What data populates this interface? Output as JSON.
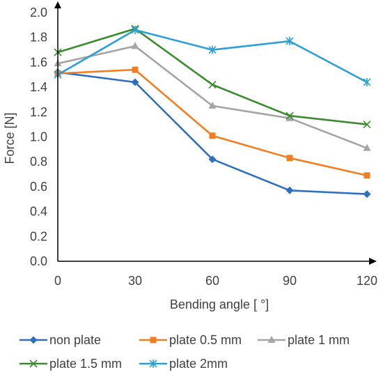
{
  "chart_data": {
    "type": "line",
    "xlabel": "Bending angle [ °]",
    "ylabel": "Force [N]",
    "x": [
      0,
      30,
      60,
      90,
      120
    ],
    "x_tick_labels": [
      "0",
      "30",
      "60",
      "90",
      "120"
    ],
    "ylim": [
      0.0,
      2.0
    ],
    "y_tick_labels": [
      "0.0",
      "0.2",
      "0.4",
      "0.6",
      "0.8",
      "1.0",
      "1.2",
      "1.4",
      "1.6",
      "1.8",
      "2.0"
    ],
    "grid": false,
    "legend_position": "bottom",
    "series": [
      {
        "name": "non plate",
        "values": [
          1.52,
          1.44,
          0.82,
          0.57,
          0.54
        ],
        "color": "#2e6fc0",
        "marker": "diamond"
      },
      {
        "name": "plate 0.5 mm",
        "values": [
          1.51,
          1.54,
          1.01,
          0.83,
          0.69
        ],
        "color": "#f07f21",
        "marker": "square"
      },
      {
        "name": "plate 1 mm",
        "values": [
          1.59,
          1.73,
          1.25,
          1.15,
          0.91
        ],
        "color": "#a5a5a5",
        "marker": "triangle"
      },
      {
        "name": "plate 1.5 mm",
        "values": [
          1.68,
          1.87,
          1.42,
          1.17,
          1.1
        ],
        "color": "#3a8a2e",
        "marker": "x"
      },
      {
        "name": "plate 2mm",
        "values": [
          1.5,
          1.86,
          1.7,
          1.77,
          1.44
        ],
        "color": "#2b9fd8",
        "marker": "star"
      }
    ]
  }
}
